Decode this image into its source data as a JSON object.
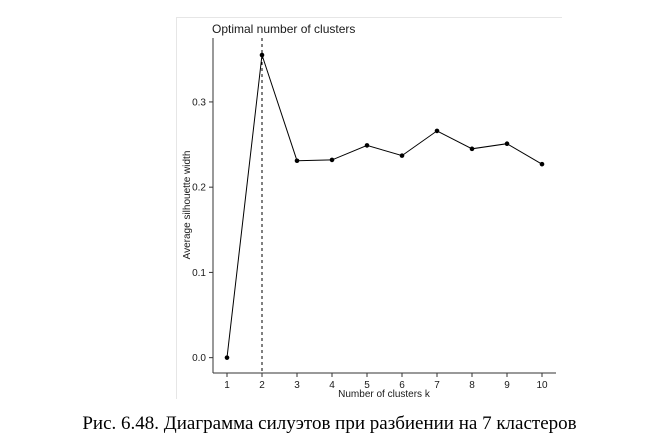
{
  "chart_data": {
    "type": "line",
    "title": "Optimal number of clusters",
    "xlabel": "Number of clusters k",
    "ylabel": "Average silhouette width",
    "x": [
      1,
      2,
      3,
      4,
      5,
      6,
      7,
      8,
      9,
      10
    ],
    "values": [
      0.0,
      0.355,
      0.231,
      0.232,
      0.249,
      0.237,
      0.266,
      0.245,
      0.251,
      0.227
    ],
    "xlim": [
      0.6,
      10.4
    ],
    "ylim": [
      -0.018,
      0.375
    ],
    "x_ticks": [
      "1",
      "2",
      "3",
      "4",
      "5",
      "6",
      "7",
      "8",
      "9",
      "10"
    ],
    "y_ticks": [
      "0.0",
      "0.1",
      "0.2",
      "0.3"
    ],
    "y_tick_values": [
      0.0,
      0.1,
      0.2,
      0.3
    ],
    "optimal_k": 2,
    "grid": false,
    "line_color": "#000000"
  },
  "caption": "Рис. 6.48. Диаграмма силуэтов при разбиении на 7 кластеров"
}
